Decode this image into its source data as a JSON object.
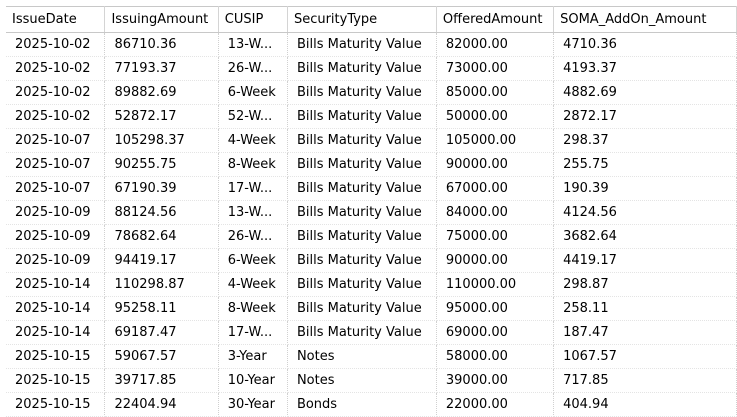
{
  "table": {
    "columns": [
      "IssueDate",
      "IssuingAmount",
      "CUSIP",
      "SecurityType",
      "OfferedAmount",
      "SOMA_AddOn_Amount"
    ],
    "rows": [
      [
        "2025-10-02",
        "86710.36",
        "13-W...",
        "Bills Maturity Value",
        "82000.00",
        "4710.36"
      ],
      [
        "2025-10-02",
        "77193.37",
        "26-W...",
        "Bills Maturity Value",
        "73000.00",
        "4193.37"
      ],
      [
        "2025-10-02",
        "89882.69",
        "6-Week",
        "Bills Maturity Value",
        "85000.00",
        "4882.69"
      ],
      [
        "2025-10-02",
        "52872.17",
        "52-W...",
        "Bills Maturity Value",
        "50000.00",
        "2872.17"
      ],
      [
        "2025-10-07",
        "105298.37",
        "4-Week",
        "Bills Maturity Value",
        "105000.00",
        "298.37"
      ],
      [
        "2025-10-07",
        "90255.75",
        "8-Week",
        "Bills Maturity Value",
        "90000.00",
        "255.75"
      ],
      [
        "2025-10-07",
        "67190.39",
        "17-W...",
        "Bills Maturity Value",
        "67000.00",
        "190.39"
      ],
      [
        "2025-10-09",
        "88124.56",
        "13-W...",
        "Bills Maturity Value",
        "84000.00",
        "4124.56"
      ],
      [
        "2025-10-09",
        "78682.64",
        "26-W...",
        "Bills Maturity Value",
        "75000.00",
        "3682.64"
      ],
      [
        "2025-10-09",
        "94419.17",
        "6-Week",
        "Bills Maturity Value",
        "90000.00",
        "4419.17"
      ],
      [
        "2025-10-14",
        "110298.87",
        "4-Week",
        "Bills Maturity Value",
        "110000.00",
        "298.87"
      ],
      [
        "2025-10-14",
        "95258.11",
        "8-Week",
        "Bills Maturity Value",
        "95000.00",
        "258.11"
      ],
      [
        "2025-10-14",
        "69187.47",
        "17-W...",
        "Bills Maturity Value",
        "69000.00",
        "187.47"
      ],
      [
        "2025-10-15",
        "59067.57",
        "3-Year",
        "Notes",
        "58000.00",
        "1067.57"
      ],
      [
        "2025-10-15",
        "39717.85",
        "10-Year",
        "Notes",
        "39000.00",
        "717.85"
      ],
      [
        "2025-10-15",
        "22404.94",
        "30-Year",
        "Bonds",
        "22000.00",
        "404.94"
      ]
    ]
  }
}
